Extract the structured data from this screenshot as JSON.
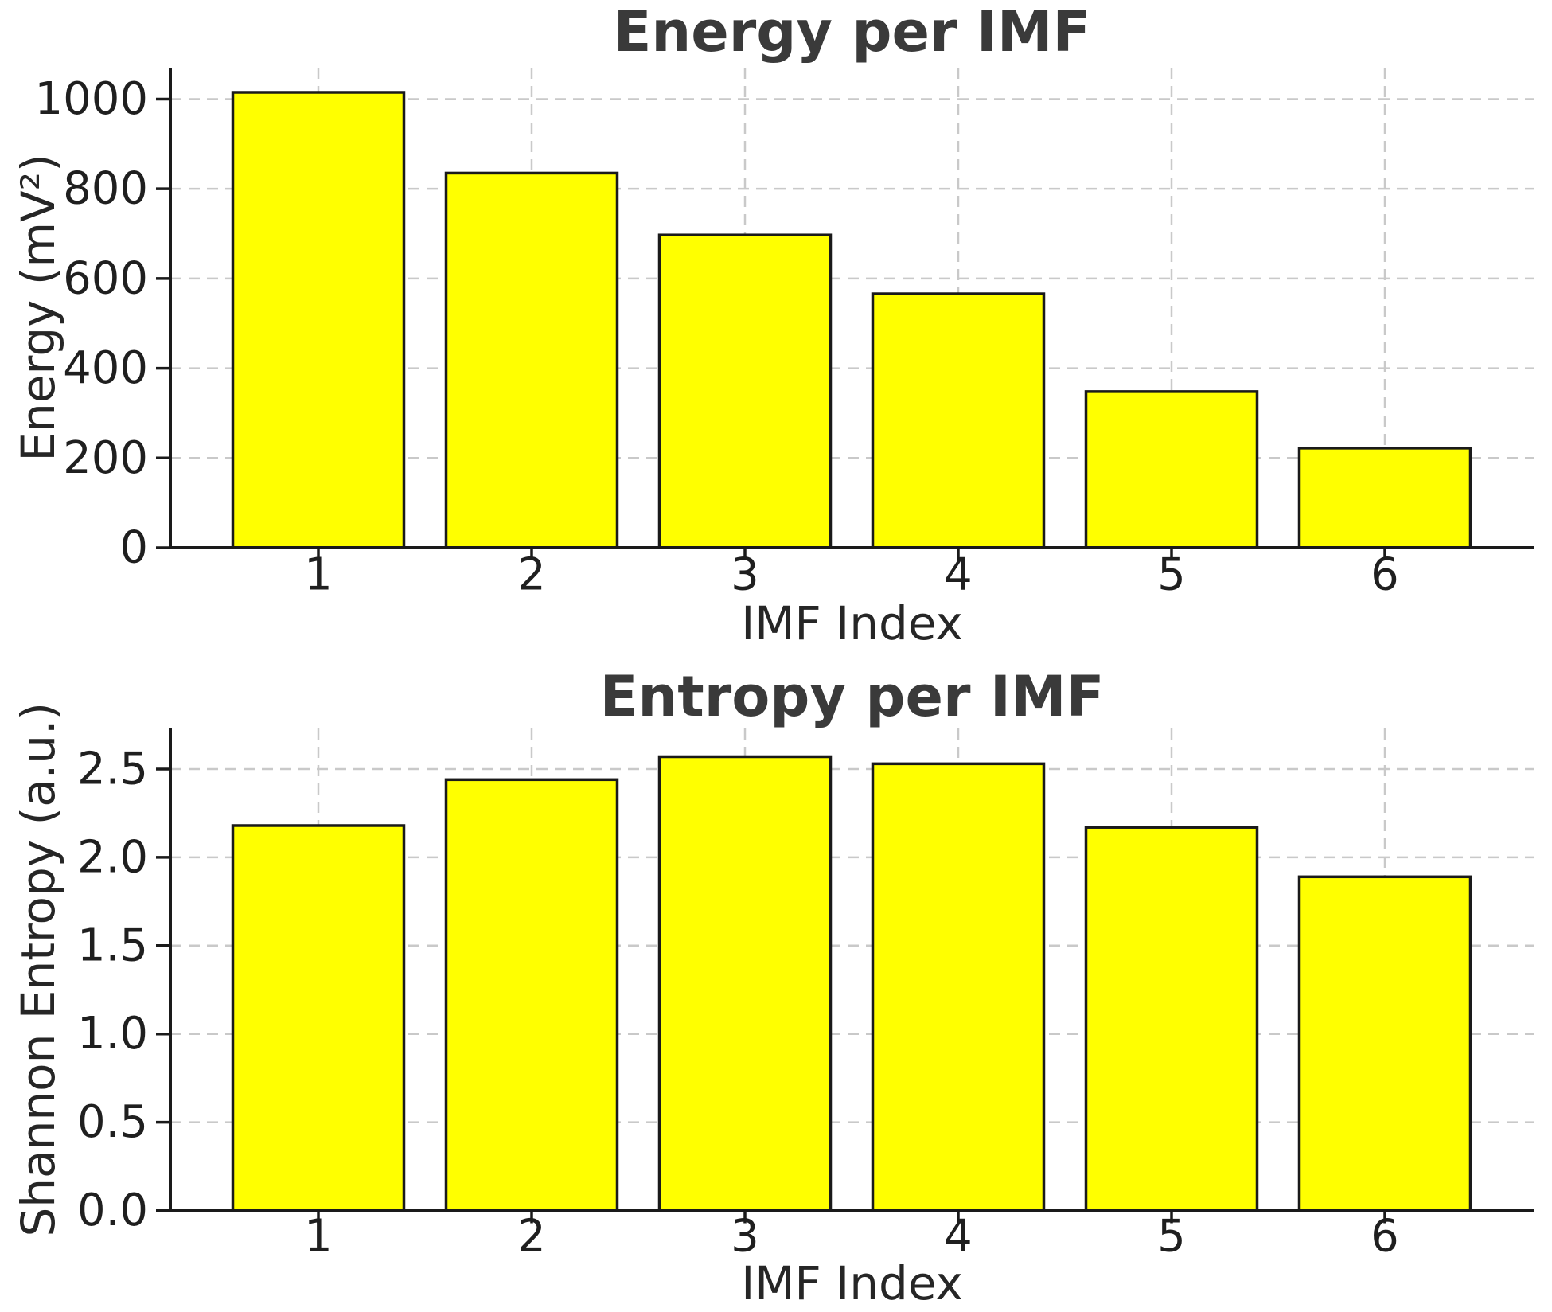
{
  "figure": {
    "background": "#ffffff",
    "bar_fill": "#ffff00",
    "bar_edge": "#1a1a1a",
    "grid_color": "#c9c9c9",
    "spine_color": "#1a1a1a",
    "tick_text_color": "#1f1f1f",
    "title_color": "#3a3a3a"
  },
  "chart_data": [
    {
      "type": "bar",
      "title": "Energy per IMF",
      "xlabel": "IMF Index",
      "ylabel": "Energy (mV²)",
      "categories": [
        "1",
        "2",
        "3",
        "4",
        "5",
        "6"
      ],
      "values": [
        1015,
        835,
        697,
        566,
        348,
        222
      ],
      "yticks": [
        "0",
        "200",
        "400",
        "600",
        "800",
        "1000"
      ],
      "ylim": [
        0,
        1070
      ],
      "grid": "horizontal and vertical, dashed, light gray",
      "legend": "none",
      "bar_color": "#ffff00"
    },
    {
      "type": "bar",
      "title": "Entropy per IMF",
      "xlabel": "IMF Index",
      "ylabel": "Shannon Entropy (a.u.)",
      "categories": [
        "1",
        "2",
        "3",
        "4",
        "5",
        "6"
      ],
      "values": [
        2.18,
        2.44,
        2.57,
        2.53,
        2.17,
        1.89
      ],
      "yticks": [
        "0.0",
        "0.5",
        "1.0",
        "1.5",
        "2.0",
        "2.5"
      ],
      "ylim": [
        0,
        2.73
      ],
      "grid": "horizontal and vertical, dashed, light gray",
      "legend": "none",
      "bar_color": "#ffff00"
    }
  ]
}
